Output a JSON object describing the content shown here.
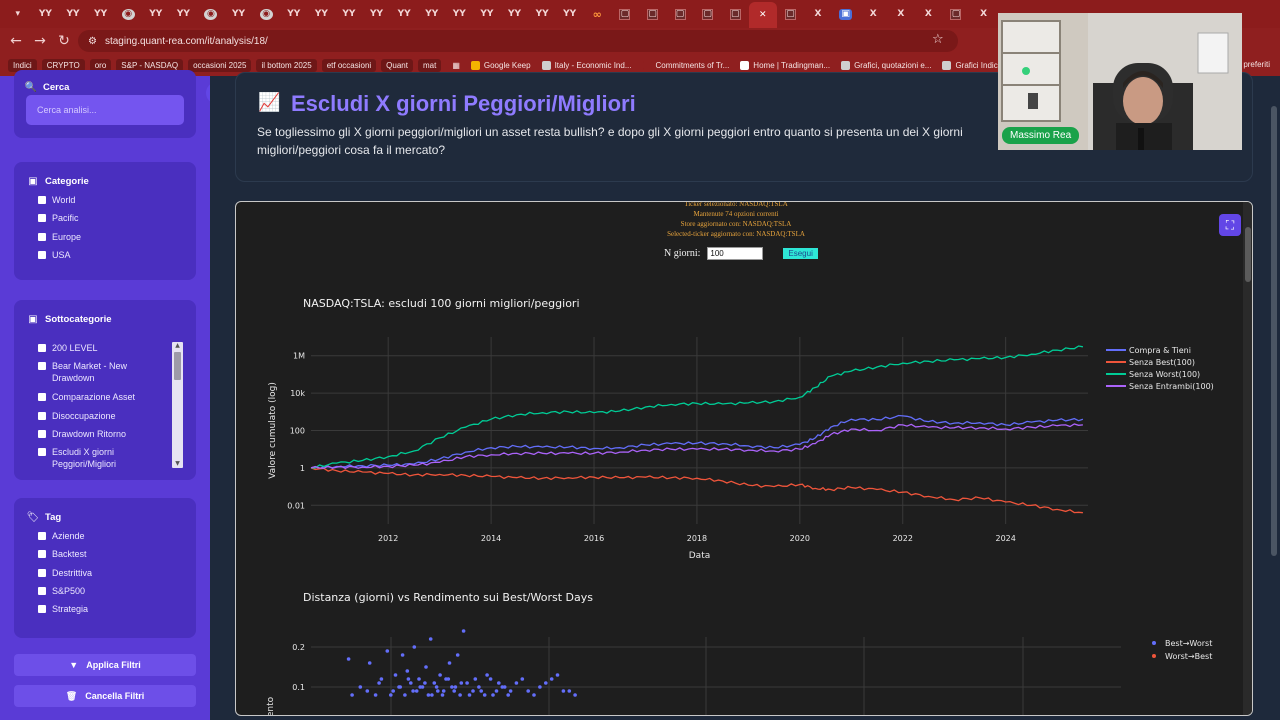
{
  "browser": {
    "url": "staging.quant-rea.com/it/analysis/18/",
    "tabs": [
      "▾",
      "YY",
      "YY",
      "YY",
      "◉",
      "YY",
      "YY",
      "◉",
      "YY",
      "◉",
      "YY",
      "YY",
      "YY",
      "YY",
      "YY",
      "YY",
      "YY",
      "YY",
      "YY",
      "YY",
      "YY",
      "∞",
      "▢",
      "▢",
      "▢",
      "▢",
      "▢",
      "✕",
      "▢",
      "X",
      "▣",
      "X",
      "X",
      "X",
      "▢",
      "X"
    ],
    "bookmarks_chips": [
      "Indici",
      "CRYPTO",
      "oro",
      "S&P - NASDAQ",
      "occasioni 2025",
      "il bottom 2025",
      "etf occasioni",
      "Quant",
      "mat"
    ],
    "bookmarks_links": [
      {
        "label": "Google Keep",
        "color": "#f4b400"
      },
      {
        "label": "Italy - Economic Ind...",
        "color": "#cfcfcf"
      },
      {
        "label": "Commitments of Tr...",
        "color": "#8f1f1f"
      },
      {
        "label": "Home | Tradingman...",
        "color": "#ffffff"
      },
      {
        "label": "Grafici, quotazioni e...",
        "color": "#cfcfcf"
      },
      {
        "label": "Grafici Indici I...",
        "color": "#cfcfcf"
      }
    ],
    "bookmarks_right": "preferiti"
  },
  "sidebar": {
    "search": {
      "title": "Cerca",
      "placeholder": "Cerca analisi..."
    },
    "categories": {
      "title": "Categorie",
      "items": [
        "World",
        "Pacific",
        "Europe",
        "USA"
      ]
    },
    "subcategories": {
      "title": "Sottocategorie",
      "items": [
        "200 LEVEL",
        "Bear Market - New Drawdown",
        "Comparazione Asset",
        "Disoccupazione",
        "Drawdown Ritorno",
        "Escludi X giorni Peggiori/Migliori"
      ]
    },
    "tags": {
      "title": "Tag",
      "items": [
        "Aziende",
        "Backtest",
        "Destrittiva",
        "S&P500",
        "Strategia"
      ]
    },
    "apply_label": "Applica Filtri",
    "cancel_label": "Cancella Filtri"
  },
  "header": {
    "title": "Escludi X giorni Peggiori/Migliori",
    "subtitle": "Se togliessimo gli X giorni peggiori/migliori un asset resta bullish? e dopo gli X giorni peggiori entro quanto si presenta un dei X giorni migliori/peggiori cosa fa il mercato?"
  },
  "controls": {
    "info_lines": [
      "Ticker selezionato: NASDAQ:TSLA",
      "Mantenute 74 opzioni correnti",
      "Store aggiornato con: NASDAQ:TSLA",
      "Selected-ticker aggiornato con: NASDAQ:TSLA"
    ],
    "n_label": "N giorni:",
    "n_value": "100",
    "run_label": "Esegui"
  },
  "webcam": {
    "name": "Massimo Rea"
  },
  "chart_data": [
    {
      "type": "line",
      "title": "NASDAQ:TSLA: escludi 100 giorni migliori/peggiori",
      "xlabel": "Data",
      "ylabel": "Valore cumulato (log)",
      "xlim": [
        2010.5,
        2025.6
      ],
      "ylim": [
        0.001,
        10000000
      ],
      "yscale": "log",
      "x_ticks": [
        "2012",
        "2014",
        "2016",
        "2018",
        "2020",
        "2022",
        "2024"
      ],
      "y_ticks": [
        "0.01",
        "1",
        "100",
        "10k",
        "1M"
      ],
      "y_tick_values": [
        0.01,
        1,
        100,
        10000,
        1000000
      ],
      "legend_position": "right",
      "x": [
        2010.5,
        2011,
        2011.5,
        2012,
        2012.5,
        2013,
        2013.5,
        2014,
        2014.5,
        2015,
        2015.5,
        2016,
        2016.5,
        2017,
        2017.5,
        2018,
        2018.5,
        2019,
        2019.5,
        2020,
        2020.3,
        2020.6,
        2021,
        2021.5,
        2022,
        2022.5,
        2023,
        2023.5,
        2024,
        2024.5,
        2025,
        2025.5
      ],
      "series": [
        {
          "name": "Compra & Tieni",
          "color": "#636efa",
          "values": [
            1,
            1.2,
            1.3,
            1.4,
            1.6,
            3,
            7,
            12,
            14,
            13,
            13,
            11,
            12,
            17,
            20,
            21,
            20,
            15,
            12,
            18,
            40,
            150,
            400,
            380,
            600,
            300,
            250,
            260,
            200,
            280,
            350,
            400
          ]
        },
        {
          "name": "Senza Best(100)",
          "color": "#ef553b",
          "values": [
            1,
            0.7,
            0.6,
            0.5,
            0.42,
            0.45,
            0.4,
            0.35,
            0.3,
            0.28,
            0.3,
            0.32,
            0.3,
            0.32,
            0.3,
            0.28,
            0.2,
            0.12,
            0.1,
            0.13,
            0.08,
            0.07,
            0.09,
            0.07,
            0.05,
            0.03,
            0.02,
            0.025,
            0.015,
            0.01,
            0.006,
            0.004
          ]
        },
        {
          "name": "Senza Worst(100)",
          "color": "#00cc96",
          "values": [
            1,
            1.8,
            2.5,
            4,
            8,
            40,
            150,
            400,
            700,
            900,
            1000,
            900,
            1100,
            1800,
            2500,
            2800,
            2600,
            3000,
            3500,
            6000,
            20000,
            80000,
            150000,
            250000,
            400000,
            500000,
            600000,
            700000,
            800000,
            1200000,
            2000000,
            3000000
          ]
        },
        {
          "name": "Senza Entrambi(100)",
          "color": "#ab63fa",
          "values": [
            1,
            1.1,
            1.1,
            1.2,
            1.4,
            2,
            4,
            5,
            6,
            6,
            6,
            6,
            7,
            9,
            10,
            10,
            10,
            9,
            8,
            10,
            20,
            60,
            120,
            100,
            200,
            150,
            140,
            140,
            120,
            150,
            180,
            200
          ]
        }
      ]
    },
    {
      "type": "scatter",
      "title": "Distanza (giorni) vs Rendimento sui Best/Worst Days",
      "y_ticks": [
        "0.1",
        "0.2"
      ],
      "y_tick_values": [
        0.1,
        0.2
      ],
      "legend_position": "right",
      "series": [
        {
          "name": "Best→Worst",
          "color": "#636efa",
          "x": [
            2,
            20,
            25,
            30,
            35,
            40,
            42,
            45,
            48,
            50,
            52,
            55,
            58,
            60,
            62,
            65,
            68,
            70,
            72,
            75,
            78,
            80,
            82,
            85,
            88,
            90,
            92,
            95,
            98,
            100,
            105,
            110,
            115,
            120,
            125,
            130,
            135,
            140,
            150,
            160,
            170,
            180,
            190,
            5,
            12,
            18,
            28,
            38,
            46,
            53,
            57,
            63,
            67,
            73,
            77,
            83,
            87,
            93,
            97,
            103,
            108,
            113,
            118,
            123,
            128,
            133,
            138,
            145,
            155,
            165,
            175,
            185,
            195
          ],
          "y": [
            0.17,
            0.16,
            0.08,
            0.12,
            0.19,
            0.09,
            0.13,
            0.1,
            0.18,
            0.08,
            0.14,
            0.11,
            0.2,
            0.09,
            0.12,
            0.1,
            0.15,
            0.08,
            0.22,
            0.11,
            0.09,
            0.13,
            0.08,
            0.12,
            0.16,
            0.1,
            0.09,
            0.18,
            0.11,
            0.24,
            0.08,
            0.12,
            0.09,
            0.13,
            0.08,
            0.11,
            0.1,
            0.09,
            0.12,
            0.08,
            0.11,
            0.13,
            0.09,
            0.08,
            0.1,
            0.09,
            0.11,
            0.08,
            0.1,
            0.12,
            0.09,
            0.1,
            0.11,
            0.08,
            0.1,
            0.09,
            0.12,
            0.1,
            0.08,
            0.11,
            0.09,
            0.1,
            0.08,
            0.12,
            0.09,
            0.1,
            0.08,
            0.11,
            0.09,
            0.1,
            0.12,
            0.09,
            0.08
          ]
        },
        {
          "name": "Worst→Best",
          "color": "#ef553b",
          "x": [],
          "y": []
        }
      ]
    }
  ]
}
